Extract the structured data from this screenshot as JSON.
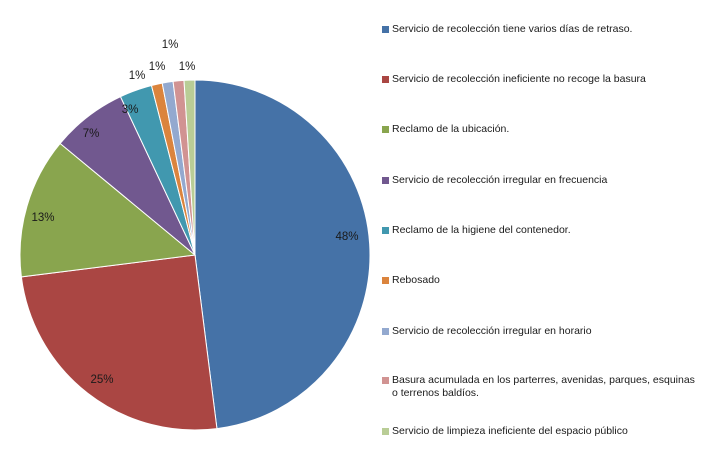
{
  "chart_data": {
    "type": "pie",
    "title": "",
    "legend_position": "right",
    "slices": [
      {
        "label": "Servicio de recolección tiene varios días de retraso.",
        "value": 48,
        "display": "48%",
        "color": "#4572A7"
      },
      {
        "label": "Servicio de recolección ineficiente no recoge la basura",
        "value": 25,
        "display": "25%",
        "color": "#AA4643"
      },
      {
        "label": "Reclamo de la ubicación.",
        "value": 13,
        "display": "13%",
        "color": "#89A54E"
      },
      {
        "label": "Servicio de recolección irregular en frecuencia",
        "value": 7,
        "display": "7%",
        "color": "#71588F"
      },
      {
        "label": "Reclamo de la higiene del contenedor.",
        "value": 3,
        "display": "3%",
        "color": "#4198AF"
      },
      {
        "label": "Rebosado",
        "value": 1,
        "display": "1%",
        "color": "#DB843D"
      },
      {
        "label": "Servicio de recolección irregular en horario",
        "value": 1,
        "display": "1%",
        "color": "#93A9CF"
      },
      {
        "label": "Basura acumulada en los parterres, avenidas, parques, esquinas o terrenos baldíos.",
        "value": 1,
        "display": "1%",
        "color": "#D19392"
      },
      {
        "label": "Servicio de limpieza ineficiente del espacio público",
        "value": 1,
        "display": "1%",
        "color": "#B9CD96"
      }
    ]
  }
}
